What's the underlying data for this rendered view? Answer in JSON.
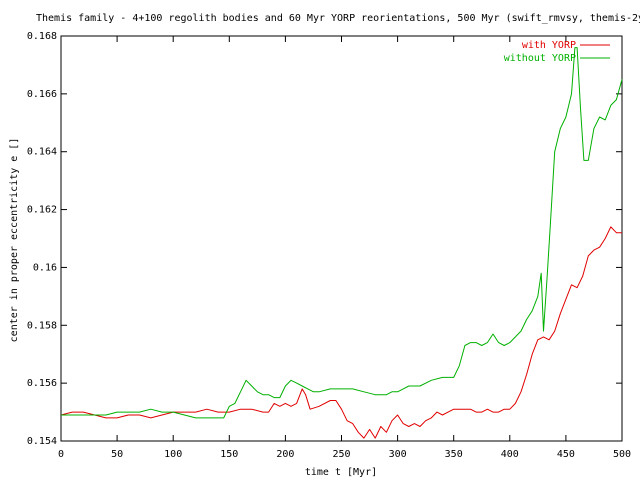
{
  "chart_data": {
    "type": "line",
    "title": "Themis family - 4+100 regolith bodies and 60 Myr YORP reorientations, 500 Myr (swift_rmvsy, themis-2y",
    "xlabel": "time t [Myr]",
    "ylabel": "center in proper eccentricity e []",
    "xlim": [
      0,
      500
    ],
    "ylim": [
      0.154,
      0.168
    ],
    "xticks": [
      0,
      50,
      100,
      150,
      200,
      250,
      300,
      350,
      400,
      450,
      500
    ],
    "xtick_labels": [
      "0",
      "50",
      "100",
      "150",
      "200",
      "250",
      "300",
      "350",
      "400",
      "450",
      "500"
    ],
    "yticks": [
      0.154,
      0.156,
      0.158,
      0.16,
      0.162,
      0.164,
      0.166,
      0.168
    ],
    "ytick_labels": [
      "0.154",
      "0.156",
      "0.158",
      "0.16",
      "0.162",
      "0.164",
      "0.166",
      "0.168"
    ],
    "grid": false,
    "legend_position": "top-right",
    "series": [
      {
        "name": "with YORP",
        "color": "#e00000",
        "x": [
          0,
          10,
          20,
          30,
          40,
          50,
          60,
          70,
          80,
          90,
          100,
          110,
          120,
          130,
          140,
          150,
          160,
          170,
          180,
          185,
          190,
          195,
          200,
          205,
          210,
          215,
          218,
          222,
          230,
          240,
          245,
          250,
          255,
          260,
          265,
          270,
          275,
          280,
          285,
          290,
          295,
          300,
          305,
          310,
          315,
          320,
          325,
          330,
          335,
          340,
          345,
          350,
          355,
          360,
          365,
          370,
          375,
          380,
          385,
          390,
          395,
          400,
          405,
          410,
          415,
          420,
          425,
          430,
          435,
          440,
          445,
          450,
          455,
          460,
          465,
          470,
          475,
          480,
          485,
          490,
          495,
          500
        ],
        "values": [
          0.1549,
          0.155,
          0.155,
          0.1549,
          0.1548,
          0.1548,
          0.1549,
          0.1549,
          0.1548,
          0.1549,
          0.155,
          0.155,
          0.155,
          0.1551,
          0.155,
          0.155,
          0.1551,
          0.1551,
          0.155,
          0.155,
          0.1553,
          0.1552,
          0.1553,
          0.1552,
          0.1553,
          0.1558,
          0.1556,
          0.1551,
          0.1552,
          0.1554,
          0.1554,
          0.1551,
          0.1547,
          0.1546,
          0.1543,
          0.1541,
          0.1544,
          0.1541,
          0.1545,
          0.1543,
          0.1547,
          0.1549,
          0.1546,
          0.1545,
          0.1546,
          0.1545,
          0.1547,
          0.1548,
          0.155,
          0.1549,
          0.155,
          0.1551,
          0.1551,
          0.1551,
          0.1551,
          0.155,
          0.155,
          0.1551,
          0.155,
          0.155,
          0.1551,
          0.1551,
          0.1553,
          0.1557,
          0.1563,
          0.157,
          0.1575,
          0.1576,
          0.1575,
          0.1578,
          0.1584,
          0.1589,
          0.1594,
          0.1593,
          0.1597,
          0.1604,
          0.1606,
          0.1607,
          0.161,
          0.1614,
          0.1612,
          0.1612
        ]
      },
      {
        "name": "without YORP",
        "color": "#00b000",
        "x": [
          0,
          10,
          20,
          30,
          40,
          50,
          60,
          70,
          80,
          90,
          100,
          110,
          120,
          130,
          140,
          145,
          150,
          155,
          160,
          165,
          170,
          175,
          180,
          185,
          190,
          195,
          200,
          205,
          210,
          215,
          220,
          225,
          230,
          240,
          250,
          260,
          270,
          280,
          290,
          295,
          300,
          305,
          310,
          320,
          330,
          340,
          350,
          355,
          360,
          365,
          370,
          375,
          380,
          385,
          390,
          395,
          400,
          405,
          410,
          415,
          420,
          425,
          428,
          430,
          433,
          436,
          440,
          445,
          450,
          455,
          458,
          460,
          463,
          466,
          470,
          475,
          480,
          485,
          490,
          495,
          500
        ],
        "values": [
          0.1549,
          0.1549,
          0.1549,
          0.1549,
          0.1549,
          0.155,
          0.155,
          0.155,
          0.1551,
          0.155,
          0.155,
          0.1549,
          0.1548,
          0.1548,
          0.1548,
          0.1548,
          0.1552,
          0.1553,
          0.1557,
          0.1561,
          0.1559,
          0.1557,
          0.1556,
          0.1556,
          0.1555,
          0.1555,
          0.1559,
          0.1561,
          0.156,
          0.1559,
          0.1558,
          0.1557,
          0.1557,
          0.1558,
          0.1558,
          0.1558,
          0.1557,
          0.1556,
          0.1556,
          0.1557,
          0.1557,
          0.1558,
          0.1559,
          0.1559,
          0.1561,
          0.1562,
          0.1562,
          0.1566,
          0.1573,
          0.1574,
          0.1574,
          0.1573,
          0.1574,
          0.1577,
          0.1574,
          0.1573,
          0.1574,
          0.1576,
          0.1578,
          0.1582,
          0.1585,
          0.159,
          0.1598,
          0.1578,
          0.1595,
          0.1614,
          0.164,
          0.1648,
          0.1652,
          0.166,
          0.1676,
          0.1676,
          0.1655,
          0.1637,
          0.1637,
          0.1648,
          0.1652,
          0.1651,
          0.1656,
          0.1658,
          0.1665
        ]
      }
    ]
  }
}
